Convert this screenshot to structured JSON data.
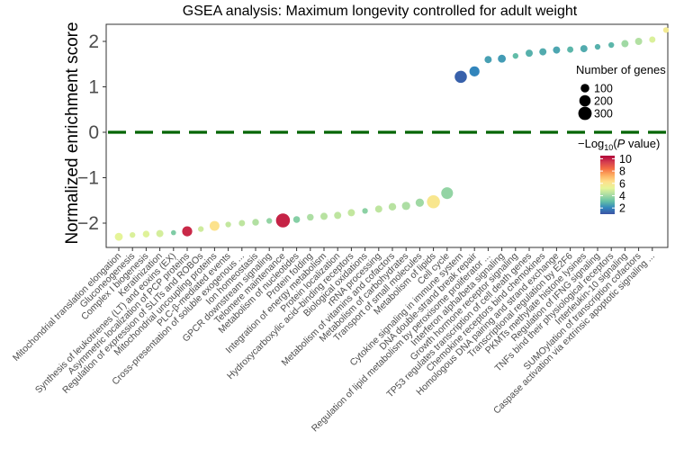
{
  "chart_data": {
    "type": "scatter",
    "title": "GSEA analysis: Maximum longevity controlled for adult weight",
    "ylabel": "Normalized enrichment score",
    "xlabel": "",
    "ylim": [
      -2.45,
      2.5
    ],
    "yticks": [
      -2,
      -1,
      0,
      1,
      2
    ],
    "reference_line": {
      "y": 0,
      "color": "#006400",
      "style": "dashed"
    },
    "size_legend": {
      "title": "Number of genes",
      "values": [
        100,
        200,
        300
      ]
    },
    "color_legend": {
      "title_prefix": "−Log",
      "title_sub": "10",
      "title_paren_open": "(",
      "title_italic": "P",
      "title_suffix": " value)",
      "ticks": [
        2,
        4,
        6,
        8,
        10
      ],
      "range": [
        1,
        10.5
      ],
      "colors": [
        "#3B52A4",
        "#3288BD",
        "#66C2A5",
        "#ABDDA4",
        "#E6F598",
        "#FEE08B",
        "#FDAE61",
        "#F46D43",
        "#D53E4F",
        "#B0003A"
      ]
    },
    "points": [
      {
        "label": "Mitochondrial translation elongation",
        "nes": -2.3,
        "genes": 80,
        "logp": 5.2
      },
      {
        "label": "Gluconeogenesis",
        "nes": -2.26,
        "genes": 30,
        "logp": 5.0
      },
      {
        "label": "Complex I biogenesis",
        "nes": -2.24,
        "genes": 50,
        "logp": 5.1
      },
      {
        "label": "Keratinization",
        "nes": -2.23,
        "genes": 60,
        "logp": 4.9
      },
      {
        "label": "Synthesis of leukotrienes (LT) and eoxins (EX)",
        "nes": -2.21,
        "genes": 20,
        "logp": 3.5
      },
      {
        "label": "Asymmetric localization of PCP proteins",
        "nes": -2.18,
        "genes": 150,
        "logp": 9.8
      },
      {
        "label": "Regulation of expression of SLITs and ROBOs",
        "nes": -2.13,
        "genes": 30,
        "logp": 4.8
      },
      {
        "label": "Mitochondrial uncoupling proteins",
        "nes": -2.06,
        "genes": 140,
        "logp": 6.2
      },
      {
        "label": "PLC-β-mediated events",
        "nes": -2.03,
        "genes": 30,
        "logp": 4.6
      },
      {
        "label": "Cross-presentation of soluble exogenous ...",
        "nes": -2.0,
        "genes": 40,
        "logp": 4.5
      },
      {
        "label": "Ion homeostasis",
        "nes": -1.98,
        "genes": 50,
        "logp": 4.3
      },
      {
        "label": "GPCR downstream signaling",
        "nes": -1.95,
        "genes": 30,
        "logp": 3.8
      },
      {
        "label": "Telomere maintenance",
        "nes": -1.94,
        "genes": 330,
        "logp": 9.9
      },
      {
        "label": "Metabolism of nucleotides",
        "nes": -1.92,
        "genes": 50,
        "logp": 3.6
      },
      {
        "label": "Protein folding",
        "nes": -1.87,
        "genes": 50,
        "logp": 4.2
      },
      {
        "label": "Integration of energy metabolism",
        "nes": -1.85,
        "genes": 60,
        "logp": 4.4
      },
      {
        "label": "Protein localization",
        "nes": -1.83,
        "genes": 60,
        "logp": 4.5
      },
      {
        "label": "Hydroxycarboxylic acid–binding receptors",
        "nes": -1.77,
        "genes": 60,
        "logp": 4.6
      },
      {
        "label": "Biological oxidations",
        "nes": -1.73,
        "genes": 30,
        "logp": 3.7
      },
      {
        "label": "rRNA processing",
        "nes": -1.69,
        "genes": 60,
        "logp": 4.5
      },
      {
        "label": "Metabolism of vitamins and cofactors",
        "nes": -1.64,
        "genes": 70,
        "logp": 4.4
      },
      {
        "label": "Metabolism of carbohydrates",
        "nes": -1.62,
        "genes": 90,
        "logp": 4.2
      },
      {
        "label": "Transport of small molecules",
        "nes": -1.55,
        "genes": 90,
        "logp": 4.0
      },
      {
        "label": "Metabolism of lipids",
        "nes": -1.53,
        "genes": 280,
        "logp": 6.0
      },
      {
        "label": "Cell cycle",
        "nes": -1.34,
        "genes": 220,
        "logp": 3.8
      },
      {
        "label": "Cytokine signaling in immune system",
        "nes": 1.22,
        "genes": 240,
        "logp": 1.3
      },
      {
        "label": "DNA double-strand break repair",
        "nes": 1.34,
        "genes": 150,
        "logp": 2.0
      },
      {
        "label": "Regulation of lipid metabolism by peroxisome proliferator ...",
        "nes": 1.6,
        "genes": 60,
        "logp": 2.5
      },
      {
        "label": "Interferon alpha/beta signaling",
        "nes": 1.62,
        "genes": 80,
        "logp": 2.4
      },
      {
        "label": "Growth hormone receptor signaling",
        "nes": 1.68,
        "genes": 30,
        "logp": 3.0
      },
      {
        "label": "TP53 regulates transcription of cell death genes",
        "nes": 1.74,
        "genes": 60,
        "logp": 2.8
      },
      {
        "label": "Chemokine receptors bind chemokines",
        "nes": 1.77,
        "genes": 60,
        "logp": 2.7
      },
      {
        "label": "Homologous DNA pairing and strand exchange",
        "nes": 1.81,
        "genes": 60,
        "logp": 2.6
      },
      {
        "label": "Transcriptional regulation by E2F6",
        "nes": 1.82,
        "genes": 40,
        "logp": 2.9
      },
      {
        "label": "PKMTs methylate histone lysines",
        "nes": 1.84,
        "genes": 60,
        "logp": 2.7
      },
      {
        "label": "Regulation of IFNG signaling",
        "nes": 1.88,
        "genes": 30,
        "logp": 2.8
      },
      {
        "label": "TNFs bind their physiological receptors",
        "nes": 1.92,
        "genes": 30,
        "logp": 2.9
      },
      {
        "label": "Interleukin-10 signaling",
        "nes": 1.95,
        "genes": 60,
        "logp": 4.0
      },
      {
        "label": "SUMOylation of transcription cofactors",
        "nes": 2.0,
        "genes": 60,
        "logp": 4.3
      },
      {
        "label": "Caspase activation via extrinsic apoptotic signaling ...",
        "nes": 2.04,
        "genes": 40,
        "logp": 5.0
      },
      {
        "label": "",
        "nes": 2.25,
        "genes": 30,
        "logp": 5.8
      }
    ]
  }
}
